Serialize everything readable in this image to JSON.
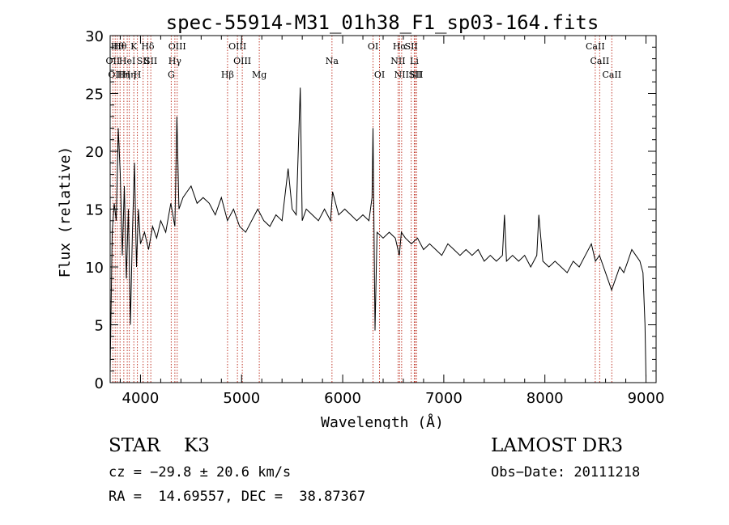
{
  "chart_data": {
    "type": "line",
    "title": "spec-55914-M31_01h38_F1_sp03-164.fits",
    "xlabel": "Wavelength (Å)",
    "ylabel": "Flux (relative)",
    "xlim": [
      3700,
      9100
    ],
    "ylim": [
      0,
      30
    ],
    "xticks": [
      4000,
      5000,
      6000,
      7000,
      8000,
      9000
    ],
    "xtick_labels": [
      "4000",
      "5000",
      "6000",
      "7000",
      "8000",
      "9000"
    ],
    "yticks": [
      0,
      5,
      10,
      15,
      20,
      25,
      30
    ],
    "ytick_labels": [
      "0",
      "5",
      "10",
      "15",
      "20",
      "25",
      "30"
    ],
    "series": [
      {
        "name": "flux",
        "x": [
          3700,
          3720,
          3740,
          3760,
          3780,
          3800,
          3820,
          3840,
          3860,
          3880,
          3900,
          3920,
          3940,
          3960,
          3980,
          4000,
          4040,
          4080,
          4120,
          4160,
          4200,
          4250,
          4300,
          4340,
          4360,
          4380,
          4420,
          4460,
          4500,
          4560,
          4620,
          4680,
          4740,
          4800,
          4860,
          4920,
          4980,
          5040,
          5100,
          5160,
          5220,
          5280,
          5340,
          5400,
          5460,
          5500,
          5540,
          5580,
          5600,
          5640,
          5700,
          5760,
          5820,
          5880,
          5900,
          5960,
          6020,
          6080,
          6140,
          6200,
          6260,
          6290,
          6300,
          6320,
          6340,
          6400,
          6460,
          6520,
          6560,
          6580,
          6620,
          6680,
          6740,
          6800,
          6860,
          6920,
          6980,
          7040,
          7100,
          7160,
          7220,
          7280,
          7340,
          7400,
          7460,
          7520,
          7580,
          7600,
          7620,
          7680,
          7740,
          7800,
          7860,
          7920,
          7940,
          7980,
          8040,
          8100,
          8160,
          8220,
          8280,
          8340,
          8400,
          8460,
          8500,
          8540,
          8580,
          8620,
          8660,
          8700,
          8740,
          8780,
          8820,
          8860,
          8900,
          8940,
          8970,
          8990,
          9000
        ],
        "values": [
          1.0,
          13.0,
          15.5,
          14.0,
          22.0,
          18.0,
          11.0,
          17.0,
          9.0,
          15.0,
          5.0,
          13.0,
          19.0,
          10.0,
          15.0,
          12.0,
          13.0,
          11.5,
          13.5,
          12.5,
          14.0,
          13.0,
          15.5,
          13.5,
          23.0,
          15.0,
          16.0,
          16.5,
          17.0,
          15.5,
          16.0,
          15.5,
          14.5,
          16.0,
          14.0,
          15.0,
          13.5,
          13.0,
          14.0,
          15.0,
          14.0,
          13.5,
          14.5,
          14.0,
          18.5,
          15.0,
          14.5,
          25.5,
          14.0,
          15.0,
          14.5,
          14.0,
          15.0,
          14.0,
          16.5,
          14.5,
          15.0,
          14.5,
          14.0,
          14.5,
          14.0,
          16.0,
          22.0,
          4.5,
          13.0,
          12.5,
          13.0,
          12.5,
          11.0,
          13.0,
          12.5,
          12.0,
          12.5,
          11.5,
          12.0,
          11.5,
          11.0,
          12.0,
          11.5,
          11.0,
          11.5,
          11.0,
          11.5,
          10.5,
          11.0,
          10.5,
          11.0,
          14.5,
          10.5,
          11.0,
          10.5,
          11.0,
          10.0,
          11.0,
          14.5,
          10.5,
          10.0,
          10.5,
          10.0,
          9.5,
          10.5,
          10.0,
          11.0,
          12.0,
          10.5,
          11.0,
          10.0,
          9.0,
          8.0,
          9.0,
          10.0,
          9.5,
          10.5,
          11.5,
          11.0,
          10.5,
          9.5,
          5.0,
          0.5
        ]
      }
    ],
    "lines": [
      {
        "wl": 3727,
        "label": "OII",
        "row": 2
      },
      {
        "wl": 3750,
        "label": "OII",
        "row": 3
      },
      {
        "wl": 3771,
        "label": "Hθ",
        "row": 1
      },
      {
        "wl": 3798,
        "label": "Hθ",
        "row": 1
      },
      {
        "wl": 3835,
        "label": "Hη",
        "row": 3
      },
      {
        "wl": 3869,
        "label": "HeI",
        "row": 2
      },
      {
        "wl": 3889,
        "label": "Hη",
        "row": 3
      },
      {
        "wl": 3934,
        "label": "K",
        "row": 1
      },
      {
        "wl": 3969,
        "label": "H",
        "row": 3
      },
      {
        "wl": 4026,
        "label": "SII",
        "row": 2
      },
      {
        "wl": 4072,
        "label": "Hδ",
        "row": 1
      },
      {
        "wl": 4102,
        "label": "SII",
        "row": 2
      },
      {
        "wl": 4304,
        "label": "G",
        "row": 3
      },
      {
        "wl": 4340,
        "label": "Hγ",
        "row": 2
      },
      {
        "wl": 4363,
        "label": "OIII",
        "row": 1
      },
      {
        "wl": 4861,
        "label": "Hβ",
        "row": 3
      },
      {
        "wl": 4959,
        "label": "OIII",
        "row": 1
      },
      {
        "wl": 5007,
        "label": "OIII",
        "row": 2
      },
      {
        "wl": 5175,
        "label": "Mg",
        "row": 3
      },
      {
        "wl": 5894,
        "label": "Na",
        "row": 2
      },
      {
        "wl": 6300,
        "label": "OI",
        "row": 1
      },
      {
        "wl": 6364,
        "label": "OI",
        "row": 3
      },
      {
        "wl": 6548,
        "label": "NII",
        "row": 2
      },
      {
        "wl": 6563,
        "label": "Hα",
        "row": 1
      },
      {
        "wl": 6583,
        "label": "NII",
        "row": 3
      },
      {
        "wl": 6678,
        "label": "SII",
        "row": 1
      },
      {
        "wl": 6708,
        "label": "Li",
        "row": 2
      },
      {
        "wl": 6717,
        "label": "SII",
        "row": 3
      },
      {
        "wl": 6731,
        "label": "SII",
        "row": 3
      },
      {
        "wl": 8498,
        "label": "CaII",
        "row": 1
      },
      {
        "wl": 8542,
        "label": "CaII",
        "row": 2
      },
      {
        "wl": 8662,
        "label": "CaII",
        "row": 3
      }
    ]
  },
  "info": {
    "class_text": "STAR    K3",
    "survey": "LAMOST DR3",
    "cz_text": "cz = −29.8 ± 20.6 km/s",
    "obs_date": "Obs−Date: 20111218",
    "radec_text": "RA =  14.69557, DEC =  38.87367"
  }
}
